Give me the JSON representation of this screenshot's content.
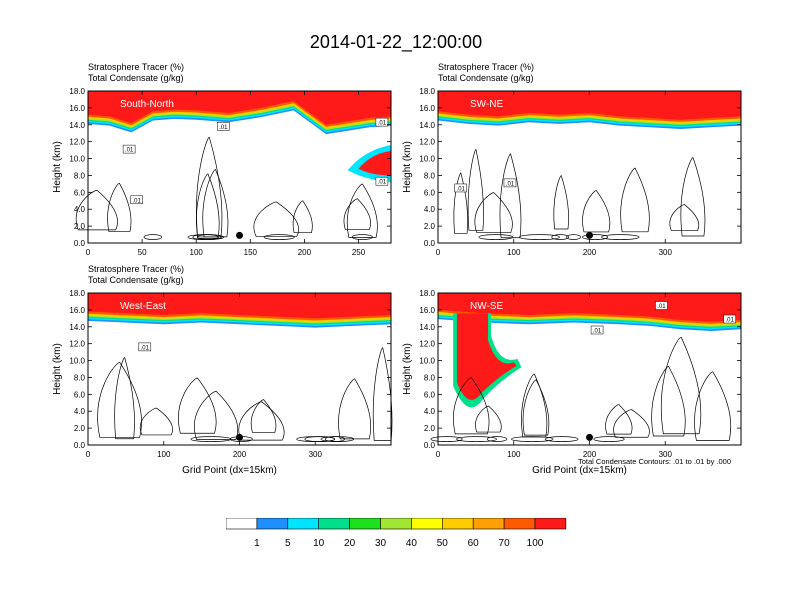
{
  "title": "2014-01-22_12:00:00",
  "footnote": "Total Condensate Contours: .01 to .01 by .000",
  "colors": {
    "bins": [
      "#ffffff",
      "#1e90ff",
      "#00e5ff",
      "#00e08a",
      "#1ee11e",
      "#a0e632",
      "#ffff00",
      "#ffcc00",
      "#ffa000",
      "#ff5a00",
      "#ff1a1a"
    ]
  },
  "colorbar_labels": [
    "1",
    "5",
    "10",
    "20",
    "30",
    "40",
    "50",
    "60",
    "70",
    "100"
  ],
  "chart_data": [
    {
      "type": "heatmap",
      "header": [
        "Stratosphere Tracer   (%)",
        "Total Condensate   (g/kg)"
      ],
      "label": "South-North",
      "ylabel": "Height (km)",
      "xlabel": "",
      "ylim": [
        0,
        18
      ],
      "xlim": [
        0,
        280
      ],
      "yticks": [
        "0.0",
        "2.0",
        "4.0",
        "6.0",
        "8.0",
        "10.0",
        "12.0",
        "14.0",
        "16.0",
        "18.0"
      ],
      "xticks": [
        {
          "v": 0,
          "t": "0"
        },
        {
          "v": 50,
          "t": "50"
        },
        {
          "v": 100,
          "t": "100"
        },
        {
          "v": 150,
          "t": "150"
        },
        {
          "v": 200,
          "t": "200"
        },
        {
          "v": 250,
          "t": "250"
        }
      ],
      "tracer_top_km": [
        [
          0,
          15.2
        ],
        [
          20,
          15.0
        ],
        [
          40,
          14.2
        ],
        [
          60,
          15.6
        ],
        [
          80,
          15.8
        ],
        [
          100,
          15.7
        ],
        [
          130,
          15.4
        ],
        [
          160,
          16.0
        ],
        [
          190,
          16.8
        ],
        [
          220,
          14.0
        ],
        [
          240,
          14.4
        ],
        [
          260,
          14.8
        ],
        [
          280,
          15.0
        ]
      ],
      "intrusion": {
        "x_km": [
          [
            310,
            10.2
          ],
          [
            330,
            8.6
          ],
          [
            350,
            7.6
          ],
          [
            350,
            10.4
          ]
        ]
      },
      "contour_labels": [
        {
          "x": 38,
          "y": 11.0,
          "t": ".01"
        },
        {
          "x": 125,
          "y": 13.7,
          "t": ".01"
        },
        {
          "x": 272,
          "y": 14.2,
          "t": ".01"
        },
        {
          "x": 45,
          "y": 5.0,
          "t": ".01"
        },
        {
          "x": 350,
          "y": 7.2,
          "t": ".01"
        }
      ],
      "marker_x": 140
    },
    {
      "type": "heatmap",
      "header": [
        "Stratosphere Tracer   (%)",
        "Total Condensate   (g/kg)"
      ],
      "label": "SW-NE",
      "ylabel": "Height (km)",
      "xlabel": "",
      "ylim": [
        0,
        18
      ],
      "xlim": [
        0,
        400
      ],
      "yticks": [
        "0.0",
        "2.0",
        "4.0",
        "6.0",
        "8.0",
        "10.0",
        "12.0",
        "14.0",
        "16.0",
        "18.0"
      ],
      "xticks": [
        {
          "v": 0,
          "t": "0"
        },
        {
          "v": 100,
          "t": "100"
        },
        {
          "v": 200,
          "t": "200"
        },
        {
          "v": 300,
          "t": "300"
        }
      ],
      "tracer_top_km": [
        [
          0,
          15.6
        ],
        [
          40,
          15.2
        ],
        [
          80,
          15.0
        ],
        [
          120,
          15.4
        ],
        [
          160,
          15.2
        ],
        [
          200,
          15.4
        ],
        [
          240,
          15.0
        ],
        [
          280,
          14.8
        ],
        [
          320,
          14.6
        ],
        [
          360,
          14.8
        ],
        [
          400,
          15.0
        ]
      ],
      "contour_labels": [
        {
          "x": 30,
          "y": 6.4,
          "t": ".01"
        },
        {
          "x": 95,
          "y": 7.0,
          "t": ".01"
        }
      ],
      "marker_x": 200
    },
    {
      "type": "heatmap",
      "header": [
        "Stratosphere Tracer   (%)",
        "Total Condensate   (g/kg)"
      ],
      "label": "West-East",
      "ylabel": "Height (km)",
      "xlabel": "Grid Point (dx=15km)",
      "ylim": [
        0,
        18
      ],
      "xlim": [
        0,
        400
      ],
      "yticks": [
        "0.0",
        "2.0",
        "4.0",
        "6.0",
        "8.0",
        "10.0",
        "12.0",
        "14.0",
        "16.0",
        "18.0"
      ],
      "xticks": [
        {
          "v": 0,
          "t": "0"
        },
        {
          "v": 100,
          "t": "100"
        },
        {
          "v": 200,
          "t": "200"
        },
        {
          "v": 300,
          "t": "300"
        }
      ],
      "tracer_top_km": [
        [
          0,
          15.8
        ],
        [
          50,
          15.6
        ],
        [
          100,
          15.4
        ],
        [
          150,
          15.6
        ],
        [
          200,
          15.4
        ],
        [
          250,
          15.2
        ],
        [
          300,
          15.0
        ],
        [
          350,
          15.2
        ],
        [
          400,
          15.4
        ]
      ],
      "contour_labels": [
        {
          "x": 75,
          "y": 11.5,
          "t": ".01"
        }
      ],
      "marker_x": 200
    },
    {
      "type": "heatmap",
      "header": [
        "",
        ""
      ],
      "label": "NW-SE",
      "ylabel": "Height (km)",
      "xlabel": "Grid Point (dx=15km)",
      "ylim": [
        0,
        18
      ],
      "xlim": [
        0,
        400
      ],
      "yticks": [
        "0.0",
        "2.0",
        "4.0",
        "6.0",
        "8.0",
        "10.0",
        "12.0",
        "14.0",
        "16.0",
        "18.0"
      ],
      "xticks": [
        {
          "v": 0,
          "t": "0"
        },
        {
          "v": 100,
          "t": "100"
        },
        {
          "v": 200,
          "t": "200"
        },
        {
          "v": 300,
          "t": "300"
        }
      ],
      "tracer_top_km": [
        [
          0,
          16.0
        ],
        [
          60,
          15.6
        ],
        [
          120,
          15.4
        ],
        [
          180,
          15.6
        ],
        [
          240,
          15.4
        ],
        [
          280,
          15.2
        ],
        [
          320,
          14.8
        ],
        [
          360,
          14.6
        ],
        [
          400,
          14.8
        ]
      ],
      "fold": true,
      "contour_labels": [
        {
          "x": 210,
          "y": 13.5,
          "t": ".01"
        },
        {
          "x": 295,
          "y": 16.4,
          "t": ".01"
        },
        {
          "x": 385,
          "y": 14.8,
          "t": ".01"
        }
      ],
      "marker_x": 200
    }
  ]
}
